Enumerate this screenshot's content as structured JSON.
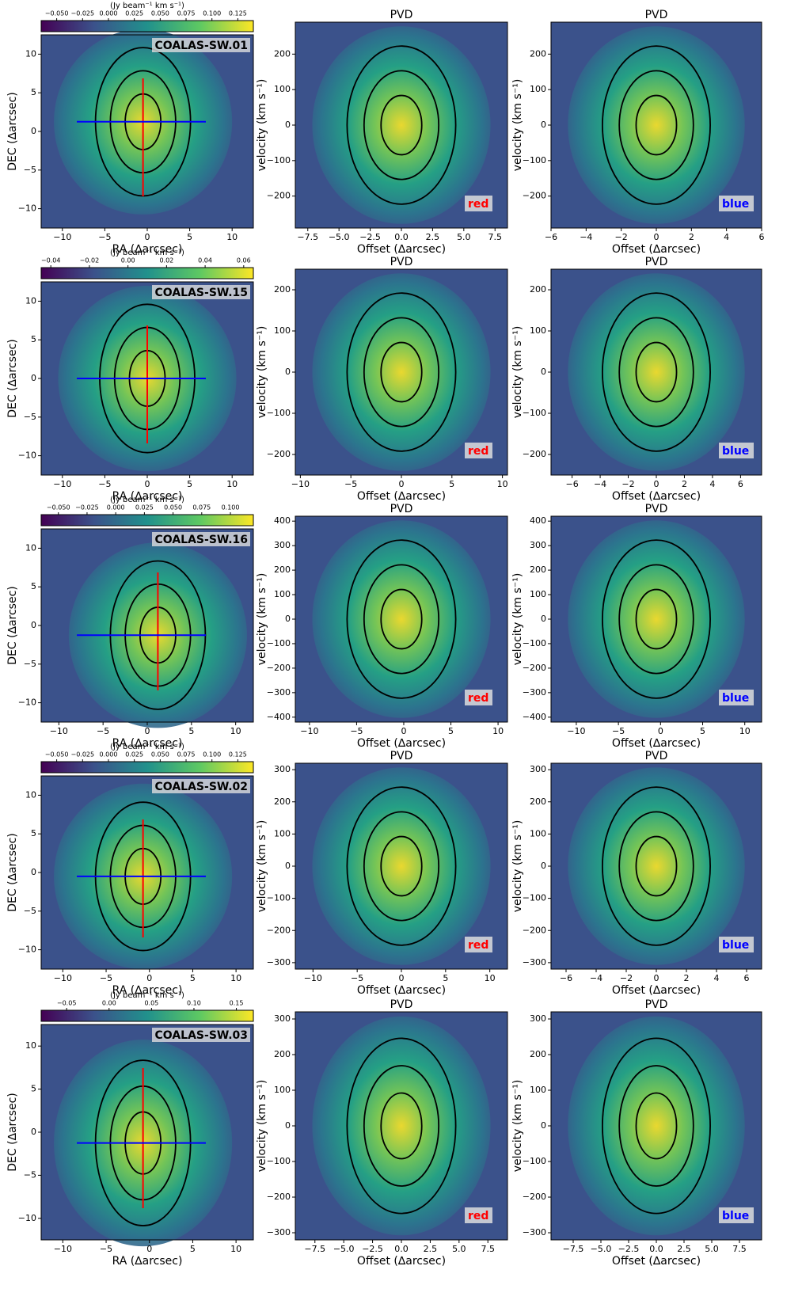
{
  "chart_data": [
    {
      "type": "image",
      "label": "COALAS-SW.01",
      "xlabel": "RA (∆arcsec)",
      "ylabel": "DEC (∆arcsec)",
      "xlim": [
        -12.5,
        12.5
      ],
      "ylim": [
        -12.5,
        12.5
      ],
      "xticks": [
        {
          "value": -10,
          "label": "−10"
        },
        {
          "value": -5,
          "label": "−5"
        },
        0,
        5,
        10
      ],
      "yticks": [
        {
          "value": -10,
          "label": "−10"
        },
        {
          "value": -5,
          "label": "−5"
        },
        0,
        5,
        10
      ],
      "colorbar": {
        "label": "(Jy beam⁻¹ km s⁻¹)",
        "lim": [
          -0.065,
          0.14
        ],
        "ticks": [
          {
            "value": -0.05,
            "label": "−0.050"
          },
          {
            "value": -0.025,
            "label": "−0.025"
          },
          {
            "value": 0,
            "label": "0.000"
          },
          {
            "value": 0.025,
            "label": "0.025"
          },
          {
            "value": 0.05,
            "label": "0.050"
          },
          {
            "value": 0.075,
            "label": "0.075"
          },
          {
            "value": 0.1,
            "label": "0.100"
          },
          {
            "value": 0.125,
            "label": "0.125"
          }
        ]
      }
    },
    {
      "type": "image",
      "title": "PVD",
      "xlabel": "Offset (∆arcsec)",
      "ylabel": "velocity (km s⁻¹)",
      "xlim": [
        -8.5,
        8.5
      ],
      "ylim": [
        -290,
        290
      ],
      "xticks": [
        {
          "value": -7.5,
          "label": "−7.5"
        },
        {
          "value": -5,
          "label": "−5.0"
        },
        {
          "value": -2.5,
          "label": "−2.5"
        },
        {
          "value": 0,
          "label": "0.0"
        },
        2.5,
        {
          "value": 5,
          "label": "5.0"
        },
        7.5
      ],
      "yticks": [
        {
          "value": -200,
          "label": "−200"
        },
        {
          "value": -100,
          "label": "−100"
        },
        0,
        100,
        200
      ],
      "tag": "red",
      "tag_color": "#ff0000"
    },
    {
      "type": "image",
      "title": "PVD",
      "xlabel": "Offset (∆arcsec)",
      "ylabel": "velocity (km s⁻¹)",
      "xlim": [
        -6,
        6
      ],
      "ylim": [
        -290,
        290
      ],
      "xticks": [
        {
          "value": -6,
          "label": "−6"
        },
        {
          "value": -4,
          "label": "−4"
        },
        {
          "value": -2,
          "label": "−2"
        },
        0,
        2,
        4,
        6
      ],
      "yticks": [
        {
          "value": -200,
          "label": "−200"
        },
        {
          "value": -100,
          "label": "−100"
        },
        0,
        100,
        200
      ],
      "tag": "blue",
      "tag_color": "#0000ff"
    },
    {
      "type": "image",
      "label": "COALAS-SW.15",
      "xlabel": "RA (∆arcsec)",
      "ylabel": "DEC (∆arcsec)",
      "xlim": [
        -12.5,
        12.5
      ],
      "ylim": [
        -12.5,
        12.5
      ],
      "xticks": [
        {
          "value": -10,
          "label": "−10"
        },
        {
          "value": -5,
          "label": "−5"
        },
        0,
        5,
        10
      ],
      "yticks": [
        {
          "value": -10,
          "label": "−10"
        },
        {
          "value": -5,
          "label": "−5"
        },
        0,
        5,
        10
      ],
      "colorbar": {
        "label": "(Jy beam⁻¹ km s⁻¹)",
        "lim": [
          -0.045,
          0.065
        ],
        "ticks": [
          {
            "value": -0.04,
            "label": "−0.04"
          },
          {
            "value": -0.02,
            "label": "−0.02"
          },
          {
            "value": 0,
            "label": "0.00"
          },
          0.02,
          0.04,
          0.06
        ]
      }
    },
    {
      "type": "image",
      "title": "PVD",
      "xlabel": "Offset (∆arcsec)",
      "ylabel": "velocity (km s⁻¹)",
      "xlim": [
        -10.5,
        10.5
      ],
      "ylim": [
        -250,
        250
      ],
      "xticks": [
        {
          "value": -10,
          "label": "−10"
        },
        {
          "value": -5,
          "label": "−5"
        },
        0,
        5,
        10
      ],
      "yticks": [
        {
          "value": -200,
          "label": "−200"
        },
        {
          "value": -100,
          "label": "−100"
        },
        0,
        100,
        200
      ],
      "tag": "red",
      "tag_color": "#ff0000"
    },
    {
      "type": "image",
      "title": "PVD",
      "xlabel": "Offset (∆arcsec)",
      "ylabel": "velocity (km s⁻¹)",
      "xlim": [
        -7.5,
        7.5
      ],
      "ylim": [
        -250,
        250
      ],
      "xticks": [
        {
          "value": -6,
          "label": "−6"
        },
        {
          "value": -4,
          "label": "−4"
        },
        {
          "value": -2,
          "label": "−2"
        },
        0,
        2,
        4,
        6
      ],
      "yticks": [
        {
          "value": -200,
          "label": "−200"
        },
        {
          "value": -100,
          "label": "−100"
        },
        0,
        100,
        200
      ],
      "tag": "blue",
      "tag_color": "#0000ff"
    },
    {
      "type": "image",
      "label": "COALAS-SW.16",
      "xlabel": "RA (∆arcsec)",
      "ylabel": "DEC (∆arcsec)",
      "xlim": [
        -12,
        12
      ],
      "ylim": [
        -12.5,
        12.5
      ],
      "xticks": [
        {
          "value": -10,
          "label": "−10"
        },
        {
          "value": -5,
          "label": "−5"
        },
        0,
        5,
        10
      ],
      "yticks": [
        {
          "value": -10,
          "label": "−10"
        },
        {
          "value": -5,
          "label": "−5"
        },
        0,
        5,
        10
      ],
      "colorbar": {
        "label": "(Jy beam⁻¹ km s⁻¹)",
        "lim": [
          -0.065,
          0.12
        ],
        "ticks": [
          {
            "value": -0.05,
            "label": "−0.050"
          },
          {
            "value": -0.025,
            "label": "−0.025"
          },
          {
            "value": 0,
            "label": "0.000"
          },
          {
            "value": 0.025,
            "label": "0.025"
          },
          {
            "value": 0.05,
            "label": "0.050"
          },
          {
            "value": 0.075,
            "label": "0.075"
          },
          {
            "value": 0.1,
            "label": "0.100"
          }
        ]
      }
    },
    {
      "type": "image",
      "title": "PVD",
      "xlabel": "Offset (∆arcsec)",
      "ylabel": "velocity (km s⁻¹)",
      "xlim": [
        -11.5,
        11
      ],
      "ylim": [
        -420,
        420
      ],
      "xticks": [
        {
          "value": -10,
          "label": "−10"
        },
        {
          "value": -5,
          "label": "−5"
        },
        0,
        5,
        10
      ],
      "yticks": [
        {
          "value": -400,
          "label": "−400"
        },
        {
          "value": -300,
          "label": "−300"
        },
        {
          "value": -200,
          "label": "−200"
        },
        {
          "value": -100,
          "label": "−100"
        },
        0,
        100,
        200,
        300,
        400
      ],
      "tag": "red",
      "tag_color": "#ff0000"
    },
    {
      "type": "image",
      "title": "PVD",
      "xlabel": "Offset (∆arcsec)",
      "ylabel": "velocity (km s⁻¹)",
      "xlim": [
        -13,
        12
      ],
      "ylim": [
        -420,
        420
      ],
      "xticks": [
        {
          "value": -10,
          "label": "−10"
        },
        {
          "value": -5,
          "label": "−5"
        },
        0,
        5,
        10
      ],
      "yticks": [
        {
          "value": -400,
          "label": "−400"
        },
        {
          "value": -300,
          "label": "−300"
        },
        {
          "value": -200,
          "label": "−200"
        },
        {
          "value": -100,
          "label": "−100"
        },
        0,
        100,
        200,
        300,
        400
      ],
      "tag": "blue",
      "tag_color": "#0000ff"
    },
    {
      "type": "image",
      "label": "COALAS-SW.02",
      "xlabel": "RA (∆arcsec)",
      "ylabel": "DEC (∆arcsec)",
      "xlim": [
        -12.5,
        12
      ],
      "ylim": [
        -12.5,
        12.5
      ],
      "xticks": [
        {
          "value": -10,
          "label": "−10"
        },
        {
          "value": -5,
          "label": "−5"
        },
        0,
        5,
        10
      ],
      "yticks": [
        {
          "value": -10,
          "label": "−10"
        },
        {
          "value": -5,
          "label": "−5"
        },
        0,
        5,
        10
      ],
      "colorbar": {
        "label": "(Jy beam⁻¹ km s⁻¹)",
        "lim": [
          -0.065,
          0.14
        ],
        "ticks": [
          {
            "value": -0.05,
            "label": "−0.050"
          },
          {
            "value": -0.025,
            "label": "−0.025"
          },
          {
            "value": 0,
            "label": "0.000"
          },
          {
            "value": 0.025,
            "label": "0.025"
          },
          {
            "value": 0.05,
            "label": "0.050"
          },
          {
            "value": 0.075,
            "label": "0.075"
          },
          {
            "value": 0.1,
            "label": "0.100"
          },
          {
            "value": 0.125,
            "label": "0.125"
          }
        ]
      }
    },
    {
      "type": "image",
      "title": "PVD",
      "xlabel": "Offset (∆arcsec)",
      "ylabel": "velocity (km s⁻¹)",
      "xlim": [
        -12,
        12
      ],
      "ylim": [
        -320,
        320
      ],
      "xticks": [
        {
          "value": -10,
          "label": "−10"
        },
        {
          "value": -5,
          "label": "−5"
        },
        0,
        5,
        10
      ],
      "yticks": [
        {
          "value": -300,
          "label": "−300"
        },
        {
          "value": -200,
          "label": "−200"
        },
        {
          "value": -100,
          "label": "−100"
        },
        0,
        100,
        200,
        300
      ],
      "tag": "red",
      "tag_color": "#ff0000"
    },
    {
      "type": "image",
      "title": "PVD",
      "xlabel": "Offset (∆arcsec)",
      "ylabel": "velocity (km s⁻¹)",
      "xlim": [
        -7,
        7
      ],
      "ylim": [
        -320,
        320
      ],
      "xticks": [
        {
          "value": -6,
          "label": "−6"
        },
        {
          "value": -4,
          "label": "−4"
        },
        {
          "value": -2,
          "label": "−2"
        },
        0,
        2,
        4,
        6
      ],
      "yticks": [
        {
          "value": -300,
          "label": "−300"
        },
        {
          "value": -200,
          "label": "−200"
        },
        {
          "value": -100,
          "label": "−100"
        },
        0,
        100,
        200,
        300
      ],
      "tag": "blue",
      "tag_color": "#0000ff"
    },
    {
      "type": "image",
      "label": "COALAS-SW.03",
      "xlabel": "RA (∆arcsec)",
      "ylabel": "DEC (∆arcsec)",
      "xlim": [
        -12.5,
        12
      ],
      "ylim": [
        -12.5,
        12.5
      ],
      "xticks": [
        {
          "value": -10,
          "label": "−10"
        },
        {
          "value": -5,
          "label": "−5"
        },
        0,
        5,
        10
      ],
      "yticks": [
        {
          "value": -10,
          "label": "−10"
        },
        {
          "value": -5,
          "label": "−5"
        },
        0,
        5,
        10
      ],
      "colorbar": {
        "label": "(Jy beam⁻¹ km s⁻¹)",
        "lim": [
          -0.08,
          0.17
        ],
        "ticks": [
          {
            "value": -0.05,
            "label": "−0.05"
          },
          {
            "value": 0,
            "label": "0.00"
          },
          0.05,
          {
            "value": 0.1,
            "label": "0.10"
          },
          0.15
        ]
      }
    },
    {
      "type": "image",
      "title": "PVD",
      "xlabel": "Offset (∆arcsec)",
      "ylabel": "velocity (km s⁻¹)",
      "xlim": [
        -9.2,
        9.2
      ],
      "ylim": [
        -320,
        320
      ],
      "xticks": [
        {
          "value": -7.5,
          "label": "−7.5"
        },
        {
          "value": -5,
          "label": "−5.0"
        },
        {
          "value": -2.5,
          "label": "−2.5"
        },
        {
          "value": 0,
          "label": "0.0"
        },
        2.5,
        {
          "value": 5,
          "label": "5.0"
        },
        7.5
      ],
      "yticks": [
        {
          "value": -300,
          "label": "−300"
        },
        {
          "value": -200,
          "label": "−200"
        },
        {
          "value": -100,
          "label": "−100"
        },
        0,
        100,
        200,
        300
      ],
      "tag": "red",
      "tag_color": "#ff0000"
    },
    {
      "type": "image",
      "title": "PVD",
      "xlabel": "Offset (∆arcsec)",
      "ylabel": "velocity (km s⁻¹)",
      "xlim": [
        -9.5,
        9.5
      ],
      "ylim": [
        -320,
        320
      ],
      "xticks": [
        {
          "value": -7.5,
          "label": "−7.5"
        },
        {
          "value": -5,
          "label": "−5.0"
        },
        {
          "value": -2.5,
          "label": "−2.5"
        },
        {
          "value": 0,
          "label": "0.0"
        },
        2.5,
        {
          "value": 5,
          "label": "5.0"
        },
        7.5
      ],
      "yticks": [
        {
          "value": -300,
          "label": "−300"
        },
        {
          "value": -200,
          "label": "−200"
        },
        {
          "value": -100,
          "label": "−100"
        },
        0,
        100,
        200,
        300
      ],
      "tag": "blue",
      "tag_color": "#0000ff"
    }
  ]
}
